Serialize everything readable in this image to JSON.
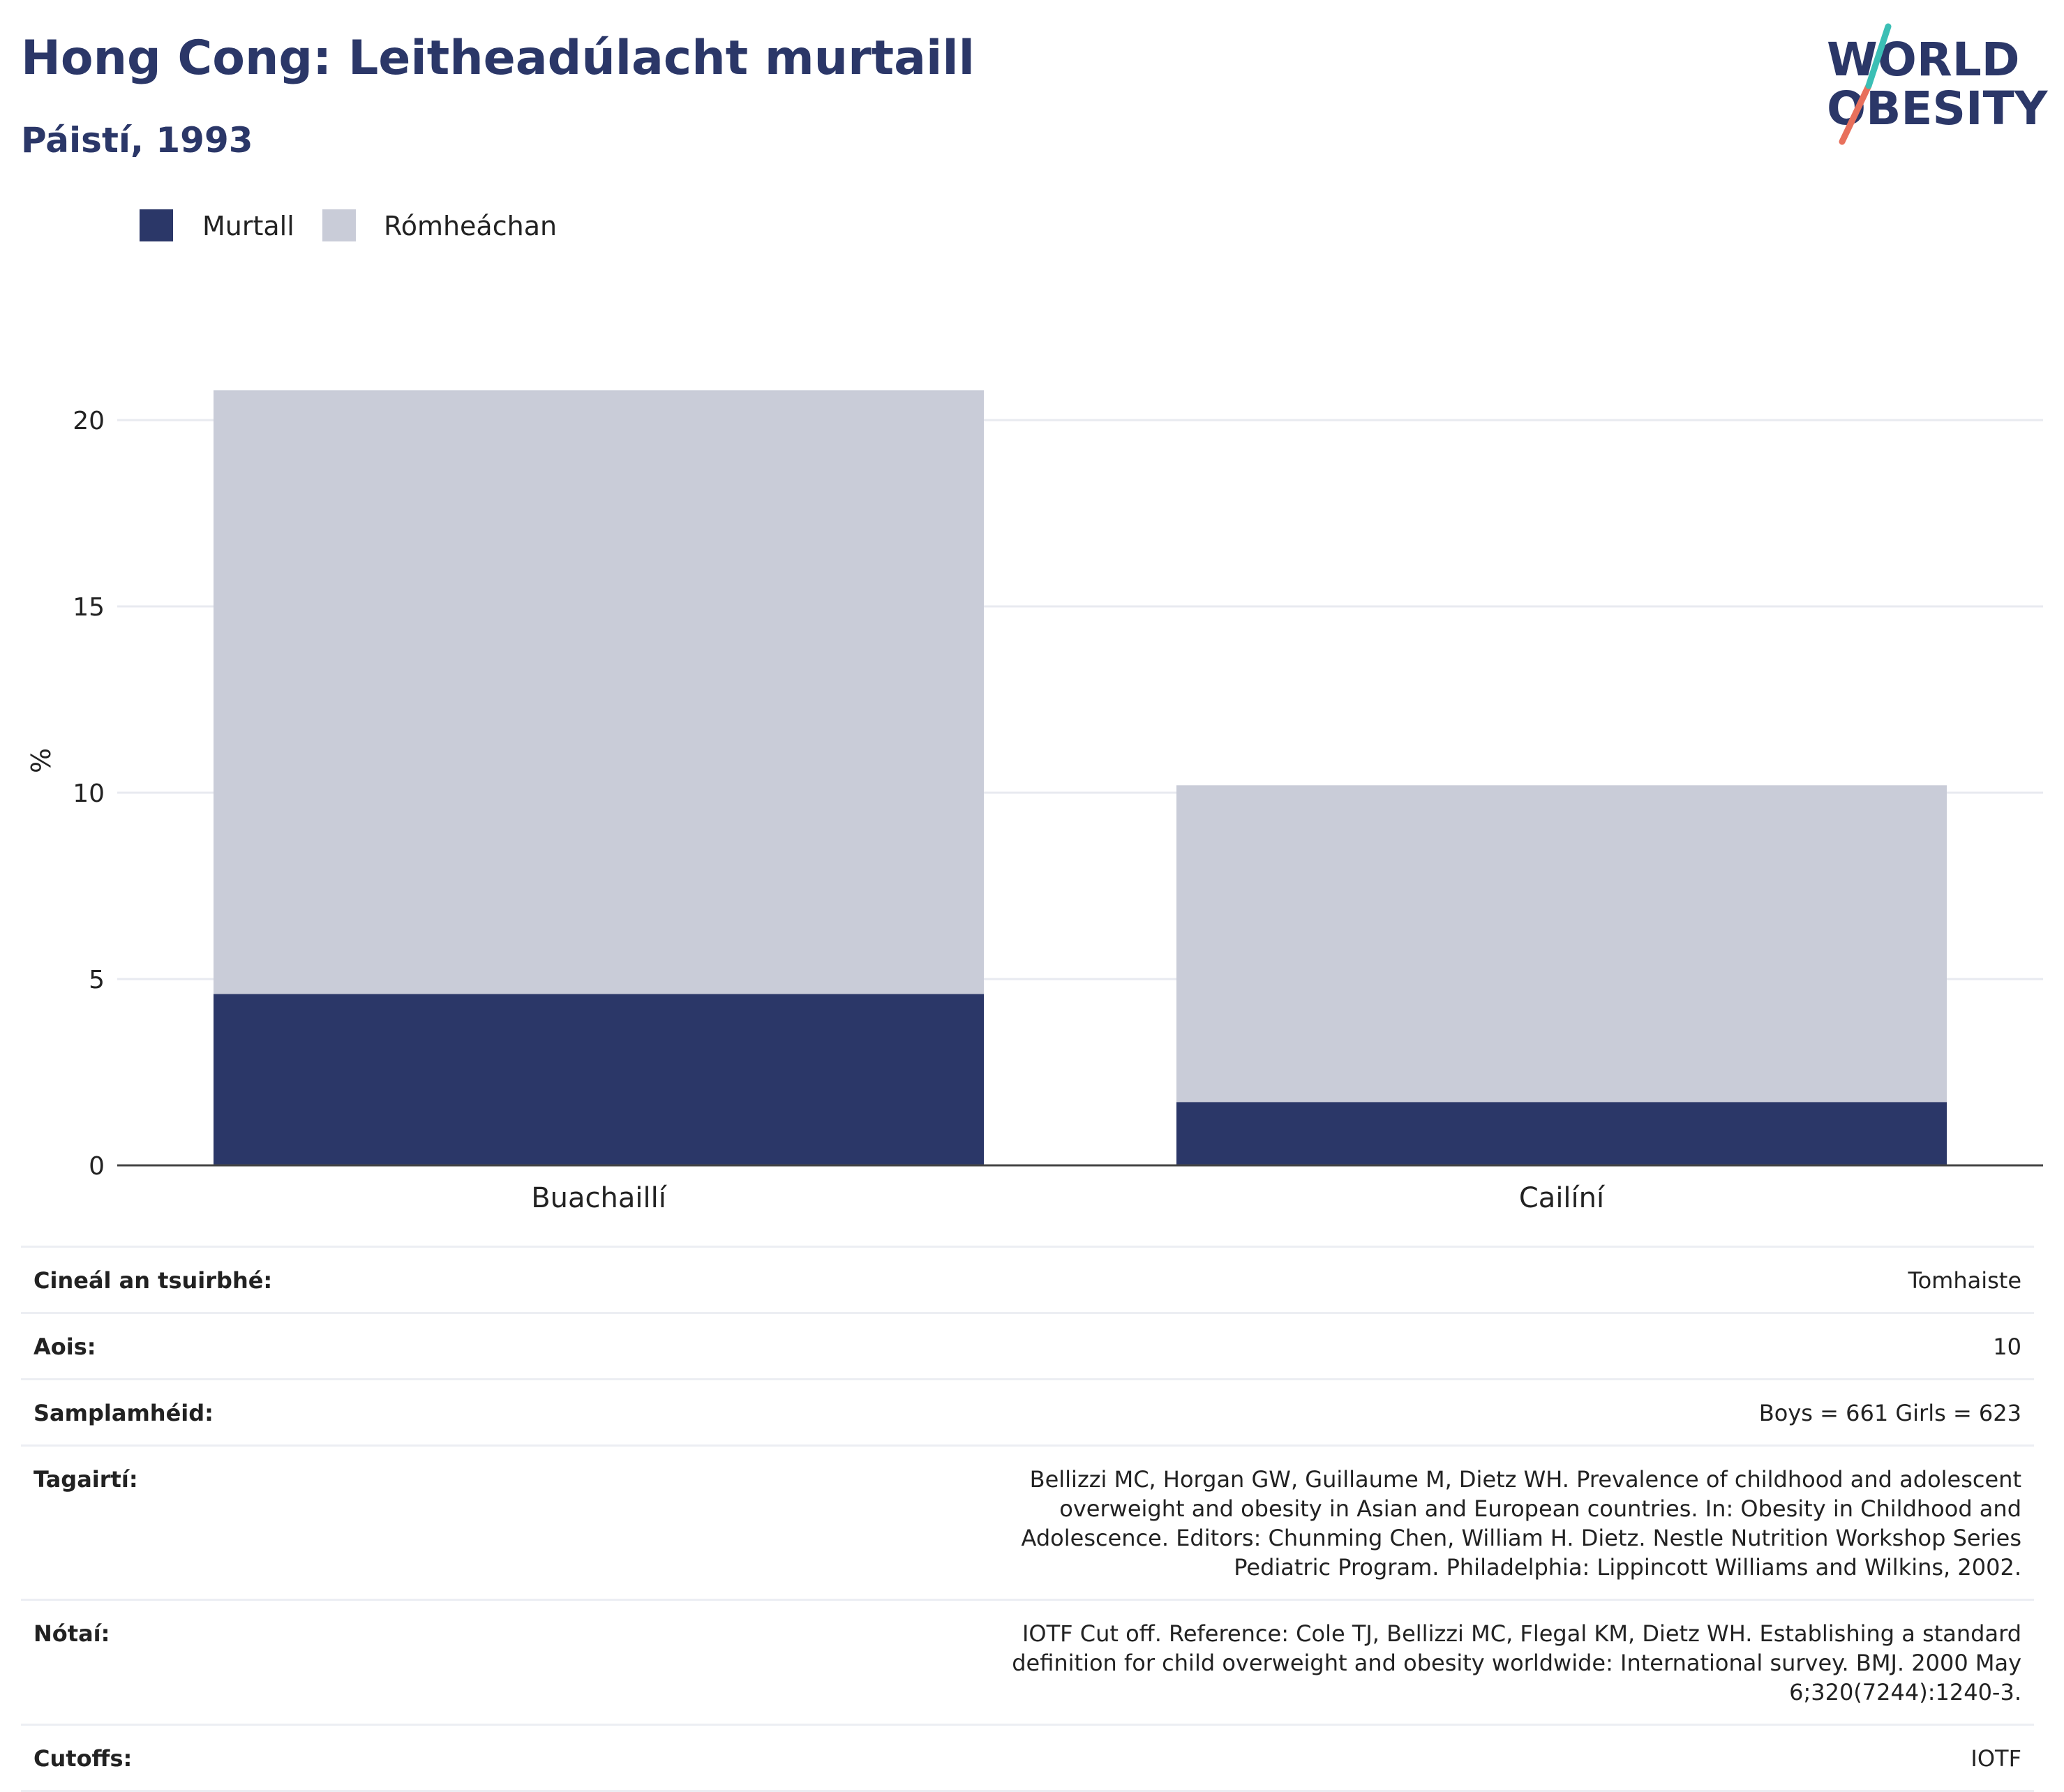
{
  "header": {
    "title": "Hong Cong: Leitheadúlacht murtaill",
    "subtitle": "Páistí, 1993"
  },
  "logo": {
    "line1": "WORLD",
    "line2": "OBESITY"
  },
  "legend": [
    {
      "label": "Murtall",
      "color": "#2b3768"
    },
    {
      "label": "Rómheáchan",
      "color": "#c9ccd8"
    }
  ],
  "chart_data": {
    "type": "bar",
    "stacked": true,
    "categories": [
      "Buachaillí",
      "Cailíní"
    ],
    "series": [
      {
        "name": "Murtall",
        "values": [
          4.6,
          1.7
        ],
        "color": "#2b3768"
      },
      {
        "name": "Rómheáchan",
        "values": [
          16.2,
          8.5
        ],
        "color": "#c9ccd8"
      }
    ],
    "ylabel": "%",
    "ylim": [
      0,
      22
    ],
    "yticks": [
      0,
      5,
      10,
      15,
      20
    ],
    "grid": true,
    "legend_position": "top-left"
  },
  "info": [
    {
      "key": "Cineál an tsuirbhé:",
      "value": "Tomhaiste"
    },
    {
      "key": "Aois:",
      "value": "10"
    },
    {
      "key": "Samplamhéid:",
      "value": "Boys = 661 Girls = 623"
    },
    {
      "key": "Tagairtí:",
      "value": "Bellizzi MC, Horgan GW, Guillaume M, Dietz WH. Prevalence of childhood and adolescent overweight and obesity in Asian and European countries. In: Obesity in Childhood and Adolescence. Editors: Chunming Chen, William H. Dietz. Nestle Nutrition Workshop Series Pediatric Program. Philadelphia: Lippincott Williams and Wilkins, 2002."
    },
    {
      "key": "Nótaí:",
      "value": "IOTF Cut off. Reference: Cole TJ, Bellizzi MC, Flegal KM, Dietz WH. Establishing a standard definition for child overweight and obesity worldwide: International survey. BMJ. 2000 May 6;320(7244):1240-3."
    },
    {
      "key": "Cutoffs:",
      "value": "IOTF"
    }
  ]
}
